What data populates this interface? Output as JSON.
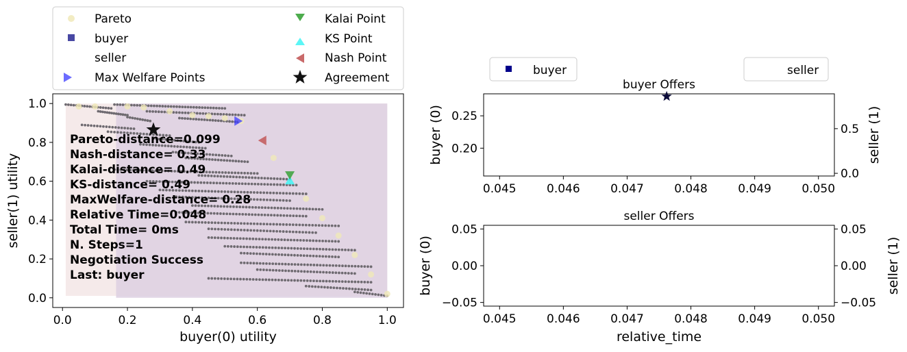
{
  "chart_data": [
    {
      "type": "scatter",
      "xlabel": "buyer(0) utility",
      "ylabel": "seller(1) utility",
      "xlim": [
        -0.03,
        1.05
      ],
      "ylim": [
        -0.05,
        1.05
      ],
      "xticks": [
        "0.0",
        "0.2",
        "0.4",
        "0.6",
        "0.8",
        "1.0"
      ],
      "yticks": [
        "0.0",
        "0.2",
        "0.4",
        "0.6",
        "0.8",
        "1.0"
      ],
      "legend": [
        {
          "name": "Pareto",
          "color": "#f0e9b8",
          "marker": "circle"
        },
        {
          "name": "buyer",
          "color": "#1a1a8c",
          "marker": "square"
        },
        {
          "name": "seller",
          "color": "#ffffff",
          "marker": "none"
        },
        {
          "name": "Max Welfare Points",
          "color": "#3b3bff",
          "marker": "triangle-right"
        },
        {
          "name": "Kalai Point",
          "color": "#2e9e2e",
          "marker": "triangle-down"
        },
        {
          "name": "KS Point",
          "color": "#3ff5f5",
          "marker": "triangle-up"
        },
        {
          "name": "Nash Point",
          "color": "#c05050",
          "marker": "triangle-left"
        },
        {
          "name": "Agreement",
          "color": "#111111",
          "marker": "star"
        }
      ],
      "legend_position": "above",
      "regions": [
        {
          "owner": "buyer",
          "x": [
            0.01,
            1.0
          ],
          "y": [
            0.01,
            1.0
          ],
          "color": "#f3e6e6"
        },
        {
          "owner": "seller",
          "x": [
            0.165,
            1.0
          ],
          "y": [
            0.0,
            1.0
          ],
          "color": "#ddd0e2"
        }
      ],
      "outcomes_color": "#6e6a70",
      "outcome_rows": [
        {
          "y": 0.985,
          "x0": 0.01,
          "x1": 0.15,
          "count": 18
        },
        {
          "y": 0.95,
          "x0": 0.11,
          "x1": 0.2,
          "count": 14
        },
        {
          "y": 0.92,
          "x0": 0.2,
          "x1": 0.27,
          "count": 10
        },
        {
          "y": 0.985,
          "x0": 0.16,
          "x1": 0.5,
          "count": 40
        },
        {
          "y": 0.95,
          "x0": 0.26,
          "x1": 0.56,
          "count": 34
        },
        {
          "y": 0.915,
          "x0": 0.36,
          "x1": 0.54,
          "count": 22
        },
        {
          "y": 0.88,
          "x0": 0.06,
          "x1": 0.22,
          "count": 18
        },
        {
          "y": 0.845,
          "x0": 0.14,
          "x1": 0.33,
          "count": 20
        },
        {
          "y": 0.81,
          "x0": 0.28,
          "x1": 0.42,
          "count": 16
        },
        {
          "y": 0.78,
          "x0": 0.24,
          "x1": 0.44,
          "count": 22
        },
        {
          "y": 0.74,
          "x0": 0.34,
          "x1": 0.52,
          "count": 20
        },
        {
          "y": 0.71,
          "x0": 0.38,
          "x1": 0.57,
          "count": 22
        },
        {
          "y": 0.65,
          "x0": 0.16,
          "x1": 0.6,
          "count": 46
        },
        {
          "y": 0.62,
          "x0": 0.42,
          "x1": 0.7,
          "count": 30
        },
        {
          "y": 0.59,
          "x0": 0.26,
          "x1": 0.72,
          "count": 48
        },
        {
          "y": 0.545,
          "x0": 0.3,
          "x1": 0.75,
          "count": 46
        },
        {
          "y": 0.51,
          "x0": 0.35,
          "x1": 0.7,
          "count": 36
        },
        {
          "y": 0.465,
          "x0": 0.4,
          "x1": 0.8,
          "count": 42
        },
        {
          "y": 0.43,
          "x0": 0.35,
          "x1": 0.75,
          "count": 42
        },
        {
          "y": 0.38,
          "x0": 0.38,
          "x1": 0.85,
          "count": 48
        },
        {
          "y": 0.345,
          "x0": 0.45,
          "x1": 0.78,
          "count": 34
        },
        {
          "y": 0.3,
          "x0": 0.45,
          "x1": 0.85,
          "count": 42
        },
        {
          "y": 0.255,
          "x0": 0.5,
          "x1": 0.9,
          "count": 42
        },
        {
          "y": 0.22,
          "x0": 0.55,
          "x1": 0.85,
          "count": 32
        },
        {
          "y": 0.17,
          "x0": 0.55,
          "x1": 0.95,
          "count": 42
        },
        {
          "y": 0.135,
          "x0": 0.6,
          "x1": 0.9,
          "count": 32
        },
        {
          "y": 0.09,
          "x0": 0.45,
          "x1": 0.95,
          "count": 52
        },
        {
          "y": 0.05,
          "x0": 0.75,
          "x1": 0.95,
          "count": 22
        },
        {
          "y": 0.02,
          "x0": 0.9,
          "x1": 1.0,
          "count": 12
        }
      ],
      "pareto": [
        [
          0.05,
          0.985
        ],
        [
          0.1,
          0.985
        ],
        [
          0.2,
          0.985
        ],
        [
          0.25,
          0.98
        ],
        [
          0.33,
          0.96
        ],
        [
          0.4,
          0.94
        ],
        [
          0.45,
          0.935
        ],
        [
          0.5,
          0.925
        ],
        [
          0.55,
          0.91
        ],
        [
          0.65,
          0.72
        ],
        [
          0.75,
          0.51
        ],
        [
          0.8,
          0.41
        ],
        [
          0.85,
          0.32
        ],
        [
          0.9,
          0.22
        ],
        [
          0.95,
          0.12
        ],
        [
          1.0,
          0.02
        ]
      ],
      "markers": {
        "max_welfare": [
          0.54,
          0.91
        ],
        "nash": [
          0.615,
          0.81
        ],
        "kalai": [
          0.7,
          0.63
        ],
        "ks": [
          0.7,
          0.605
        ],
        "agreement": [
          0.28,
          0.865
        ]
      },
      "annotations": [
        "Pareto-distance=0.099",
        "Nash-distance= 0.33",
        "Kalai-distance= 0.49",
        "KS-distance= 0.49",
        "MaxWelfare-distance= 0.28",
        "Relative Time=0.048",
        "Total Time= 0ms",
        "N. Steps=1",
        "Negotiation Success",
        "Last: buyer"
      ]
    },
    {
      "type": "scatter",
      "title": "buyer Offers",
      "xlabel": "",
      "ylabel": "buyer (0)",
      "ylabel_right": "seller (1)",
      "xlim": [
        0.04475,
        0.05025
      ],
      "ylim": [
        0.157,
        0.284
      ],
      "ylim_right": [
        -0.03,
        0.89
      ],
      "xticks": [
        "0.045",
        "0.046",
        "0.047",
        "0.048",
        "0.049",
        "0.050"
      ],
      "yticks": [
        "0.20",
        "0.25"
      ],
      "yticks_right": [
        "0.0",
        "0.5"
      ],
      "legend": [
        {
          "name": "buyer",
          "color": "#00008b",
          "marker": "square"
        },
        {
          "name": "seller",
          "color": "#ffffff",
          "marker": "none"
        }
      ],
      "series": [
        {
          "name": "buyer",
          "x": [
            0.04762
          ],
          "y": [
            0.28
          ],
          "marker": "star",
          "color": "#0d0d3a"
        }
      ]
    },
    {
      "type": "scatter",
      "title": "seller Offers",
      "xlabel": "relative_time",
      "ylabel": "buyer (0)",
      "ylabel_right": "seller (1)",
      "xlim": [
        0.04475,
        0.05025
      ],
      "ylim": [
        -0.055,
        0.055
      ],
      "ylim_right": [
        -0.055,
        0.055
      ],
      "xticks": [
        "0.045",
        "0.046",
        "0.047",
        "0.048",
        "0.049",
        "0.050"
      ],
      "yticks": [
        "−0.05",
        "0.00",
        "0.05"
      ],
      "yticks_right": [
        "−0.05",
        "0.00",
        "0.05"
      ],
      "series": []
    }
  ]
}
